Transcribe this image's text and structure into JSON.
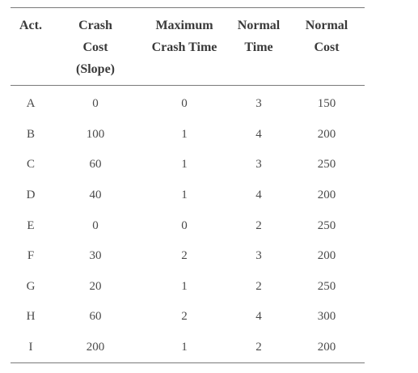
{
  "headers": [
    {
      "lines": [
        "Act."
      ]
    },
    {
      "lines": [
        "Crash",
        "Cost",
        "(Slope)"
      ]
    },
    {
      "lines": [
        "Maximum",
        "Crash Time"
      ]
    },
    {
      "lines": [
        "Normal",
        "Time"
      ]
    },
    {
      "lines": [
        "Normal",
        "Cost"
      ]
    }
  ],
  "rows": [
    {
      "act": "A",
      "crash_cost": "0",
      "max_crash_time": "0",
      "normal_time": "3",
      "normal_cost": "150"
    },
    {
      "act": "B",
      "crash_cost": "100",
      "max_crash_time": "1",
      "normal_time": "4",
      "normal_cost": "200"
    },
    {
      "act": "C",
      "crash_cost": "60",
      "max_crash_time": "1",
      "normal_time": "3",
      "normal_cost": "250"
    },
    {
      "act": "D",
      "crash_cost": "40",
      "max_crash_time": "1",
      "normal_time": "4",
      "normal_cost": "200"
    },
    {
      "act": "E",
      "crash_cost": "0",
      "max_crash_time": "0",
      "normal_time": "2",
      "normal_cost": "250"
    },
    {
      "act": "F",
      "crash_cost": "30",
      "max_crash_time": "2",
      "normal_time": "3",
      "normal_cost": "200"
    },
    {
      "act": "G",
      "crash_cost": "20",
      "max_crash_time": "1",
      "normal_time": "2",
      "normal_cost": "250"
    },
    {
      "act": "H",
      "crash_cost": "60",
      "max_crash_time": "2",
      "normal_time": "4",
      "normal_cost": "300"
    },
    {
      "act": "I",
      "crash_cost": "200",
      "max_crash_time": "1",
      "normal_time": "2",
      "normal_cost": "200"
    }
  ]
}
